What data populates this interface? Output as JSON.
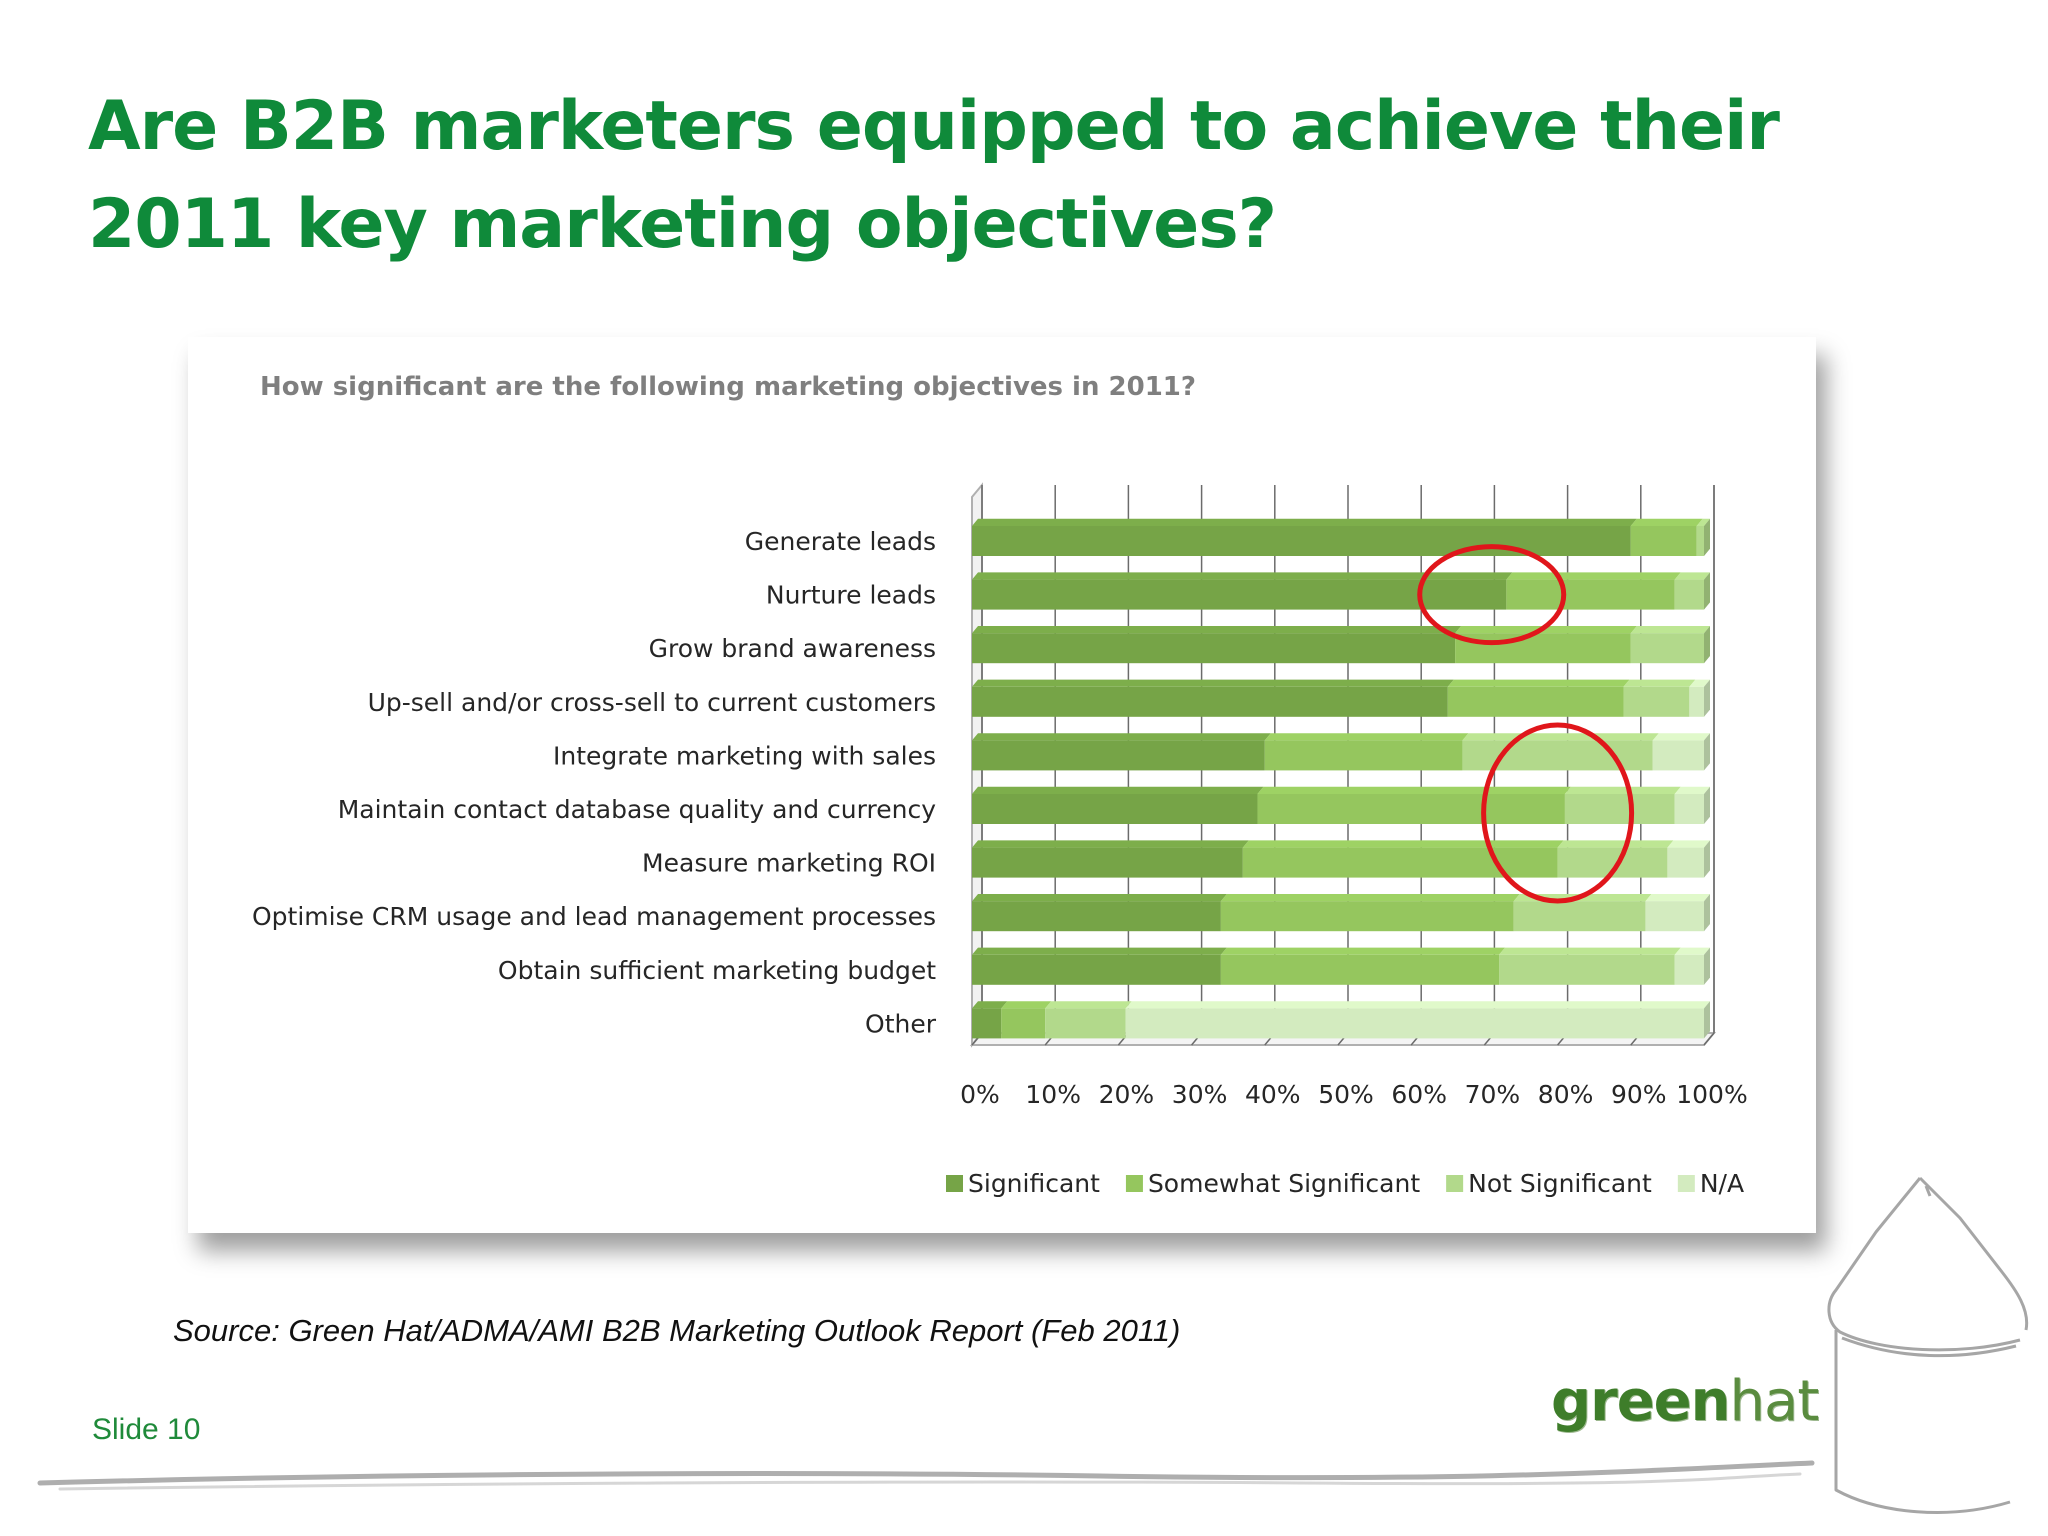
{
  "slide": {
    "title": "Are B2B marketers equipped to achieve their 2011 key marketing objectives?",
    "source": "Source: Green Hat/ADMA/AMI B2B Marketing Outlook Report (Feb 2011)",
    "slide_number": "Slide 10",
    "logo": {
      "part1": "green",
      "part2": "hat"
    }
  },
  "colors": {
    "title": "#0f8a3a",
    "highlight_circle": "#e0161b"
  },
  "chart_data": {
    "type": "bar",
    "orientation": "horizontal",
    "stacked": true,
    "percent_stacked": true,
    "title": "How significant are the following marketing objectives in 2011?",
    "categories": [
      "Generate leads",
      "Nurture leads",
      "Grow brand awareness",
      "Up-sell and/or cross-sell to current customers",
      "Integrate marketing with sales",
      "Maintain contact database quality and currency",
      "Measure marketing ROI",
      "Optimise CRM usage and lead management processes",
      "Obtain sufficient marketing budget",
      "Other"
    ],
    "series": [
      {
        "name": "Significant",
        "color": "#76a447",
        "values": [
          90,
          73,
          66,
          65,
          40,
          39,
          37,
          34,
          34,
          4
        ]
      },
      {
        "name": "Somewhat Significant",
        "color": "#95c65e",
        "values": [
          9,
          23,
          24,
          24,
          27,
          42,
          43,
          40,
          38,
          6
        ]
      },
      {
        "name": "Not Significant",
        "color": "#b2d98b",
        "values": [
          1,
          4,
          10,
          9,
          26,
          15,
          15,
          18,
          24,
          11
        ]
      },
      {
        "name": "N/A",
        "color": "#d3ebbf",
        "values": [
          0,
          0,
          0,
          2,
          7,
          4,
          5,
          8,
          4,
          79
        ]
      }
    ],
    "xlim": [
      0,
      100
    ],
    "x_ticks": [
      "0%",
      "10%",
      "20%",
      "30%",
      "40%",
      "50%",
      "60%",
      "70%",
      "80%",
      "90%",
      "100%"
    ],
    "legend_position": "bottom-right",
    "grid": true,
    "annotations": [
      "red circle around Nurture leads at ~70%",
      "red circle around rows 5–7 at ~80%"
    ]
  }
}
